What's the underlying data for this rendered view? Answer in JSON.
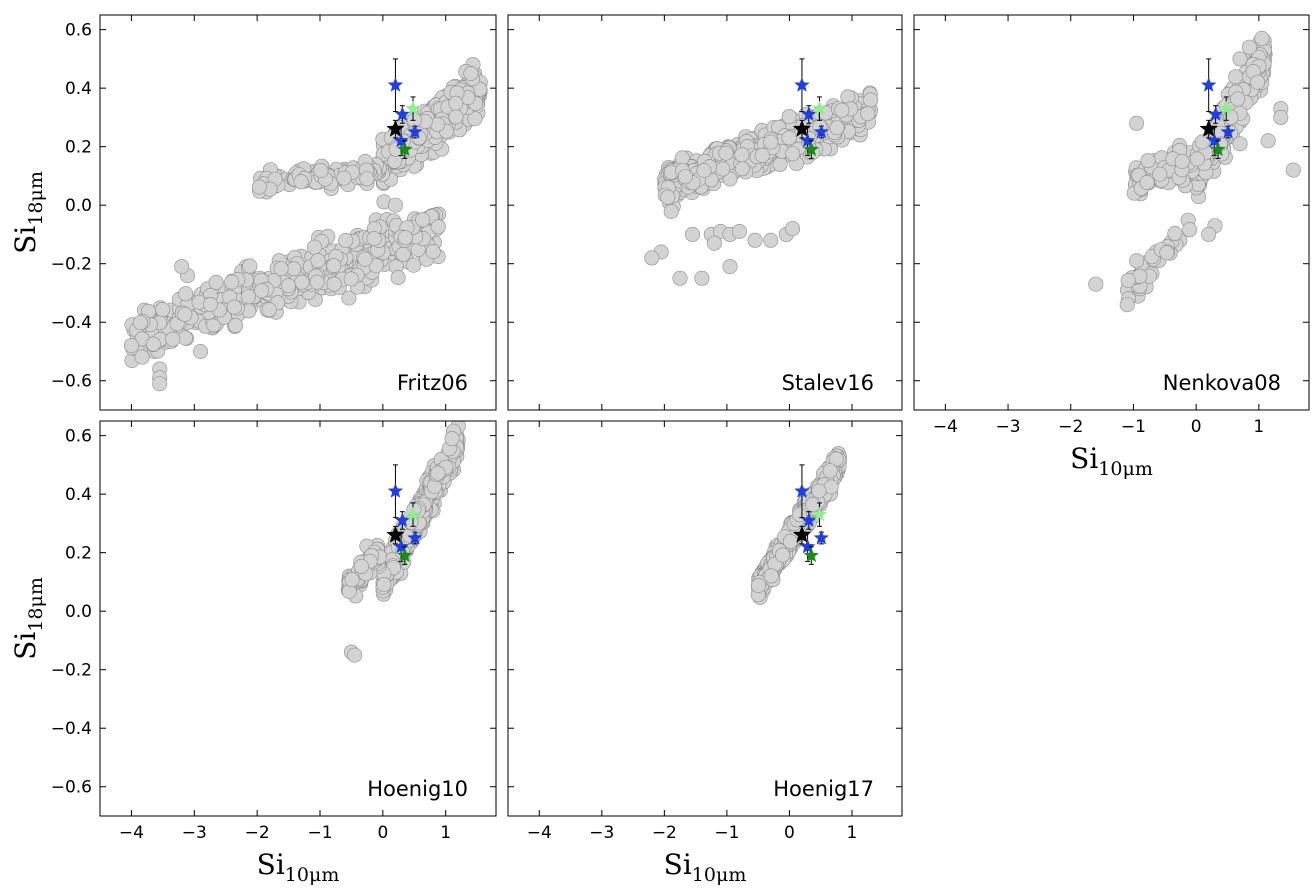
{
  "chart_data": {
    "type": "scatter",
    "xlabel": "Si",
    "xlabel_subscript": "10μm",
    "ylabel": "Si",
    "ylabel_subscript": "18μm",
    "xlim": [
      -4.5,
      1.8
    ],
    "ylim": [
      -0.7,
      0.65
    ],
    "xticks": [
      -4,
      -3,
      -2,
      -1,
      0,
      1
    ],
    "xtick_labels": [
      "−4",
      "−3",
      "−2",
      "−1",
      "0",
      "1"
    ],
    "yticks": [
      -0.6,
      -0.4,
      -0.2,
      0.0,
      0.2,
      0.4,
      0.6
    ],
    "ytick_labels": [
      "−0.6",
      "−0.4",
      "−0.2",
      "0.0",
      "0.2",
      "0.4",
      "0.6"
    ],
    "grid": false,
    "model_color": "#d3d3d3",
    "model_edge_color": "#8c8c8c",
    "observed_points": [
      {
        "x": 0.2,
        "y": 0.41,
        "color": "#1f3fe0",
        "yerr": 0.09
      },
      {
        "x": 0.31,
        "y": 0.31,
        "color": "#1f3fe0",
        "yerr": 0.03
      },
      {
        "x": 0.48,
        "y": 0.33,
        "color": "#90ee90",
        "yerr": 0.04
      },
      {
        "x": 0.2,
        "y": 0.26,
        "color": "#000000",
        "yerr": 0.03
      },
      {
        "x": 0.51,
        "y": 0.25,
        "color": "#1f3fe0",
        "yerr": 0.02
      },
      {
        "x": 0.29,
        "y": 0.22,
        "color": "#1f3fe0",
        "yerr": 0.05
      },
      {
        "x": 0.35,
        "y": 0.19,
        "color": "#1a8a1a",
        "yerr": 0.03
      }
    ],
    "panels": [
      {
        "label": "Fritz06",
        "model_regions": [
          {
            "x": [
              0.0,
              1.55
            ],
            "y_center": [
              0.13,
              0.4
            ],
            "spread": 0.07,
            "count": 520
          },
          {
            "x": [
              -2.0,
              0.0
            ],
            "y_center": [
              0.07,
              0.12
            ],
            "spread": 0.03,
            "count": 110
          },
          {
            "x": [
              -4.0,
              0.9
            ],
            "y_center": [
              -0.45,
              -0.08
            ],
            "spread": 0.09,
            "count": 460
          }
        ],
        "model_points": [
          {
            "x": -4.0,
            "y": -0.48
          },
          {
            "x": -3.55,
            "y": -0.56
          },
          {
            "x": -3.55,
            "y": -0.59
          },
          {
            "x": -3.55,
            "y": -0.61
          },
          {
            "x": -2.9,
            "y": -0.5
          },
          {
            "x": -3.2,
            "y": -0.21
          },
          {
            "x": -1.3,
            "y": 0.08
          },
          {
            "x": 0.2,
            "y": 0.0
          },
          {
            "x": 1.4,
            "y": 0.45
          }
        ]
      },
      {
        "label": "Stalev16",
        "model_regions": [
          {
            "x": [
              -2.0,
              1.3
            ],
            "y_center": [
              0.07,
              0.32
            ],
            "spread": 0.06,
            "count": 600
          }
        ],
        "model_points": [
          {
            "x": -1.55,
            "y": -0.1
          },
          {
            "x": -1.25,
            "y": -0.1
          },
          {
            "x": -1.1,
            "y": -0.09
          },
          {
            "x": -0.95,
            "y": -0.1
          },
          {
            "x": -0.8,
            "y": -0.09
          },
          {
            "x": -0.55,
            "y": -0.12
          },
          {
            "x": -0.3,
            "y": -0.12
          },
          {
            "x": -0.05,
            "y": -0.1
          },
          {
            "x": 0.05,
            "y": -0.08
          },
          {
            "x": -2.05,
            "y": -0.16
          },
          {
            "x": -2.2,
            "y": -0.18
          },
          {
            "x": -1.75,
            "y": -0.25
          },
          {
            "x": -1.4,
            "y": -0.25
          },
          {
            "x": -0.95,
            "y": -0.21
          },
          {
            "x": -1.2,
            "y": -0.13
          },
          {
            "x": 1.3,
            "y": 0.36
          }
        ]
      },
      {
        "label": "Nenkova08",
        "model_regions": [
          {
            "x": [
              0.0,
              1.1
            ],
            "y_center": [
              0.1,
              0.5
            ],
            "spread": 0.07,
            "count": 420
          },
          {
            "x": [
              -1.0,
              0.2
            ],
            "y_center": [
              0.08,
              0.18
            ],
            "spread": 0.05,
            "count": 130
          },
          {
            "x": [
              -1.1,
              -0.1
            ],
            "y_center": [
              -0.28,
              -0.08
            ],
            "spread": 0.05,
            "count": 45
          }
        ],
        "model_points": [
          {
            "x": 1.05,
            "y": 0.57
          },
          {
            "x": 0.85,
            "y": 0.54
          },
          {
            "x": 0.7,
            "y": 0.5
          },
          {
            "x": -0.95,
            "y": 0.28
          },
          {
            "x": 1.55,
            "y": 0.12
          },
          {
            "x": 1.35,
            "y": 0.33
          },
          {
            "x": 1.35,
            "y": 0.3
          },
          {
            "x": 1.15,
            "y": 0.22
          },
          {
            "x": 0.7,
            "y": 0.21
          },
          {
            "x": -1.6,
            "y": -0.27
          },
          {
            "x": -1.1,
            "y": -0.34
          },
          {
            "x": -0.95,
            "y": -0.19
          },
          {
            "x": 0.3,
            "y": -0.07
          },
          {
            "x": 0.2,
            "y": -0.1
          }
        ]
      },
      {
        "label": "Hoenig10",
        "model_regions": [
          {
            "x": [
              0.0,
              1.2
            ],
            "y_center": [
              0.1,
              0.58
            ],
            "spread": 0.05,
            "count": 480
          },
          {
            "x": [
              -0.55,
              -0.05
            ],
            "y_center": [
              0.08,
              0.2
            ],
            "spread": 0.04,
            "count": 80
          }
        ],
        "model_points": [
          {
            "x": -0.5,
            "y": -0.14
          },
          {
            "x": -0.45,
            "y": -0.15
          },
          {
            "x": 1.1,
            "y": 0.59
          }
        ]
      },
      {
        "label": "Hoenig17",
        "model_regions": [
          {
            "x": [
              -0.5,
              0.8
            ],
            "y_center": [
              0.08,
              0.51
            ],
            "spread": 0.04,
            "count": 520
          }
        ],
        "model_points": [
          {
            "x": 0.75,
            "y": 0.52
          },
          {
            "x": 0.65,
            "y": 0.48
          }
        ]
      }
    ]
  }
}
